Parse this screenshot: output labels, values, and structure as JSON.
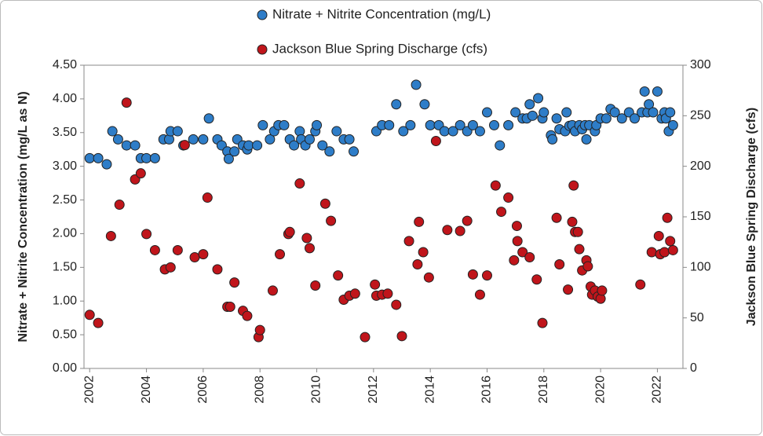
{
  "chart_data": {
    "type": "scatter",
    "ylabel": "Nitrate + Nitrite Concentration (mg/L as N)",
    "y2label": "Jackson Blue Spring Discharge (cfs)",
    "xlim": [
      2001.8,
      2022.9
    ],
    "xticks": [
      2002,
      2004,
      2006,
      2008,
      2010,
      2012,
      2014,
      2016,
      2018,
      2020,
      2022
    ],
    "ylim": [
      0,
      4.5
    ],
    "yticks": [
      {
        "value": 0,
        "label": "0.00"
      },
      {
        "value": 0.5,
        "label": "0.50"
      },
      {
        "value": 1,
        "label": "1.00"
      },
      {
        "value": 1.5,
        "label": "1.50"
      },
      {
        "value": 2,
        "label": "2.00"
      },
      {
        "value": 2.5,
        "label": "2.50"
      },
      {
        "value": 3,
        "label": "3.00"
      },
      {
        "value": 3.5,
        "label": "3.50"
      },
      {
        "value": 4,
        "label": "4.00"
      },
      {
        "value": 4.5,
        "label": "4.50"
      }
    ],
    "y2lim": [
      0,
      300
    ],
    "y2ticks": [
      0,
      50,
      100,
      150,
      200,
      250,
      300
    ],
    "grid": false,
    "series": [
      {
        "name": "Nitrate + Nitrite Concentration (mg/L)",
        "color": "#2e7dc8",
        "x": [
          2002.0,
          2002.3,
          2002.6,
          2002.8,
          2003.0,
          2003.3,
          2003.6,
          2003.8,
          2004.0,
          2004.3,
          2004.6,
          2004.8,
          2004.85,
          2005.1,
          2005.3,
          2005.65,
          2006.0,
          2006.2,
          2006.5,
          2006.65,
          2006.85,
          2006.9,
          2007.1,
          2007.2,
          2007.4,
          2007.55,
          2007.6,
          2007.9,
          2008.1,
          2008.35,
          2008.5,
          2008.65,
          2008.85,
          2009.05,
          2009.2,
          2009.4,
          2009.45,
          2009.6,
          2009.75,
          2009.95,
          2010.0,
          2010.2,
          2010.45,
          2010.7,
          2010.95,
          2011.15,
          2011.3,
          2012.1,
          2012.3,
          2012.55,
          2012.8,
          2013.05,
          2013.3,
          2013.5,
          2013.8,
          2014.0,
          2014.3,
          2014.5,
          2014.8,
          2015.05,
          2015.3,
          2015.5,
          2015.75,
          2016.0,
          2016.25,
          2016.45,
          2016.75,
          2017.0,
          2017.25,
          2017.4,
          2017.5,
          2017.6,
          2017.8,
          2017.95,
          2018.0,
          2018.25,
          2018.3,
          2018.45,
          2018.55,
          2018.75,
          2018.8,
          2018.9,
          2019.0,
          2019.1,
          2019.25,
          2019.35,
          2019.45,
          2019.5,
          2019.6,
          2019.8,
          2019.85,
          2020.0,
          2020.2,
          2020.35,
          2020.5,
          2020.75,
          2021.0,
          2021.2,
          2021.45,
          2021.55,
          2021.65,
          2021.7,
          2021.85,
          2022.0,
          2022.15,
          2022.25,
          2022.3,
          2022.4,
          2022.45,
          2022.55
        ],
        "values": [
          3.12,
          3.12,
          3.03,
          3.52,
          3.4,
          3.31,
          3.31,
          3.12,
          3.12,
          3.12,
          3.4,
          3.4,
          3.52,
          3.52,
          3.31,
          3.4,
          3.4,
          3.71,
          3.4,
          3.31,
          3.22,
          3.11,
          3.22,
          3.4,
          3.31,
          3.25,
          3.31,
          3.31,
          3.61,
          3.4,
          3.52,
          3.61,
          3.61,
          3.4,
          3.31,
          3.52,
          3.4,
          3.31,
          3.4,
          3.52,
          3.61,
          3.31,
          3.22,
          3.52,
          3.4,
          3.4,
          3.22,
          3.52,
          3.61,
          3.61,
          3.92,
          3.52,
          3.61,
          4.21,
          3.92,
          3.61,
          3.61,
          3.52,
          3.52,
          3.61,
          3.52,
          3.61,
          3.52,
          3.8,
          3.61,
          3.31,
          3.61,
          3.8,
          3.71,
          3.71,
          3.92,
          3.75,
          4.01,
          3.71,
          3.8,
          3.46,
          3.4,
          3.71,
          3.55,
          3.52,
          3.8,
          3.6,
          3.61,
          3.52,
          3.61,
          3.55,
          3.61,
          3.4,
          3.61,
          3.52,
          3.61,
          3.71,
          3.71,
          3.85,
          3.8,
          3.71,
          3.8,
          3.71,
          3.8,
          4.11,
          3.8,
          3.92,
          3.8,
          4.11,
          3.71,
          3.8,
          3.71,
          3.52,
          3.8,
          3.61
        ]
      },
      {
        "name": "Jackson Blue Spring Discharge (cfs)",
        "color": "#c0151b",
        "axis": "y2",
        "x": [
          2002.0,
          2002.3,
          2002.75,
          2003.05,
          2003.3,
          2003.6,
          2003.8,
          2004.0,
          2004.3,
          2004.65,
          2004.85,
          2005.1,
          2005.35,
          2005.7,
          2006.0,
          2006.15,
          2006.5,
          2006.85,
          2006.95,
          2007.1,
          2007.4,
          2007.55,
          2007.95,
          2008.0,
          2008.45,
          2008.7,
          2009.0,
          2009.05,
          2009.4,
          2009.65,
          2009.75,
          2009.95,
          2010.3,
          2010.5,
          2010.75,
          2010.95,
          2011.15,
          2011.35,
          2011.7,
          2012.05,
          2012.1,
          2012.3,
          2012.5,
          2012.8,
          2013.0,
          2013.25,
          2013.6,
          2013.55,
          2013.75,
          2013.95,
          2014.2,
          2014.6,
          2015.05,
          2015.3,
          2015.5,
          2015.75,
          2016.0,
          2016.3,
          2016.5,
          2016.75,
          2016.95,
          2017.05,
          2017.07,
          2017.25,
          2017.5,
          2017.75,
          2017.95,
          2018.45,
          2018.55,
          2018.85,
          2019.0,
          2019.05,
          2019.1,
          2019.2,
          2019.25,
          2019.35,
          2019.5,
          2019.55,
          2019.65,
          2019.7,
          2019.8,
          2019.9,
          2020.0,
          2020.05,
          2021.4,
          2021.8,
          2022.05,
          2022.1,
          2022.25,
          2022.35,
          2022.45,
          2022.55
        ],
        "values": [
          53,
          45,
          131,
          162,
          263,
          187,
          193,
          133,
          117,
          98,
          100,
          117,
          221,
          110,
          113,
          169,
          98,
          61,
          61,
          85,
          57,
          52,
          31,
          38,
          77,
          113,
          133,
          135,
          183,
          129,
          119,
          82,
          163,
          146,
          92,
          68,
          72,
          74,
          31,
          83,
          72,
          73,
          74,
          63,
          32,
          126,
          145,
          103,
          115,
          90,
          225,
          137,
          136,
          146,
          93,
          73,
          92,
          181,
          155,
          169,
          107,
          141,
          126,
          115,
          110,
          88,
          45,
          149,
          103,
          78,
          145,
          181,
          135,
          135,
          118,
          97,
          107,
          101,
          81,
          73,
          77,
          71,
          69,
          77,
          83,
          115,
          131,
          113,
          115,
          149,
          126,
          117
        ]
      }
    ]
  }
}
